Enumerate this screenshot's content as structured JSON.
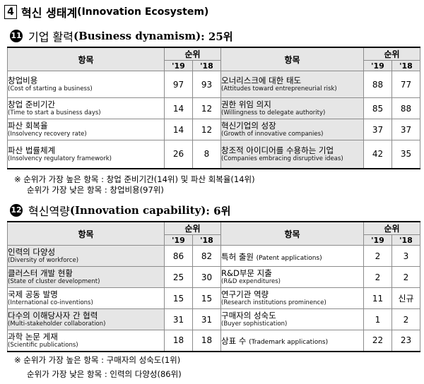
{
  "main_title": {
    "number": "4",
    "ko": "혁신 생태계",
    "en": "(Innovation Ecosystem)"
  },
  "sections": [
    {
      "number": "11",
      "title_ko": "기업 활력",
      "title_en": "(Business dynamism)",
      "rank_text": " : 25위",
      "header": {
        "item": "항목",
        "rank": "순위",
        "y19": "'19",
        "y18": "'18"
      },
      "rows": [
        {
          "left": {
            "ko": "창업비용",
            "en": "(Cost of  starting a business)",
            "r19": "97",
            "r18": "93",
            "shade": false
          },
          "right": {
            "ko": "오너리스크에 대한 태도",
            "en": "(Attitudes toward entrepreneurial risk)",
            "r19": "88",
            "r18": "77",
            "shade": true
          }
        },
        {
          "left": {
            "ko": "창업 준비기간",
            "en": "(Time to start a business days)",
            "r19": "14",
            "r18": "12",
            "shade": false
          },
          "right": {
            "ko": "권한 위임 의지",
            "en": "(Willingness to delegate authority)",
            "r19": "85",
            "r18": "88",
            "shade": true
          }
        },
        {
          "left": {
            "ko": "파산 회복율",
            "en": "(Insolvency recovery rate)",
            "r19": "14",
            "r18": "12",
            "shade": false
          },
          "right": {
            "ko": "혁신기업의 성장",
            "en": "(Growth of innovative companies)",
            "r19": "37",
            "r18": "37",
            "shade": true
          }
        },
        {
          "left": {
            "ko": "파산 법률체계",
            "en": "(Insolvency regulatory framework)",
            "r19": "26",
            "r18": "8",
            "shade": false
          },
          "right": {
            "ko": "창조적 아이디어를 수용하는 기업",
            "en": "(Companies embracing disruptive ideas)",
            "r19": "42",
            "r18": "35",
            "shade": true
          }
        }
      ],
      "notes": [
        "※ 순위가 가장 높은 항목 : 창업 준비기간(14위) 및 파산 회복율(14위)",
        "순위가 가장 낮은 항목 : 창업비용(97위)"
      ]
    },
    {
      "number": "12",
      "title_ko": "혁신역량",
      "title_en": "(Innovation capability)",
      "rank_text": " : 6위",
      "header": {
        "item": "항목",
        "rank": "순위",
        "y19": "'19",
        "y18": "'18"
      },
      "rows": [
        {
          "left": {
            "ko": "인력의 다양성",
            "en": "(Diversity of workforce)",
            "r19": "86",
            "r18": "82",
            "shade": true
          },
          "right": {
            "ko": "특허 출원",
            "en": "(Patent  applications)",
            "r19": "2",
            "r18": "3",
            "shade": false,
            "inline": true
          }
        },
        {
          "left": {
            "ko": "클러스터 개발 현황",
            "en": "(State of cluster development)",
            "r19": "25",
            "r18": "30",
            "shade": true
          },
          "right": {
            "ko": "R&D부문 지출",
            "en": "(R&D expenditures)",
            "r19": "2",
            "r18": "2",
            "shade": false
          }
        },
        {
          "left": {
            "ko": "국제 공동 발명",
            "en": "(International co-inventions)",
            "r19": "15",
            "r18": "15",
            "shade": false
          },
          "right": {
            "ko": "연구기관 역량",
            "en": "(Research institutions prominence)",
            "r19": "11",
            "r18": "신규",
            "shade": false
          }
        },
        {
          "left": {
            "ko": "다수의 이해당사자 간 협력",
            "en": "(Multi-stakeholder collaboration)",
            "r19": "31",
            "r18": "31",
            "shade": true
          },
          "right": {
            "ko": "구매자의 성숙도",
            "en": "(Buyer sophistication)",
            "r19": "1",
            "r18": "2",
            "shade": false
          }
        },
        {
          "left": {
            "ko": "과학 논문 게재",
            "en": "(Scientific publications)",
            "r19": "18",
            "r18": "18",
            "shade": false
          },
          "right": {
            "ko": "상표 수",
            "en": "(Trademark applications)",
            "r19": "22",
            "r18": "23",
            "shade": false,
            "inline": true
          }
        }
      ],
      "notes": [
        "※ 순위가 가장 높은 항목 : 구매자의 성숙도(1위)",
        "순위가 가장 낮은 항목 : 인력의 다양성(86위)"
      ]
    }
  ]
}
